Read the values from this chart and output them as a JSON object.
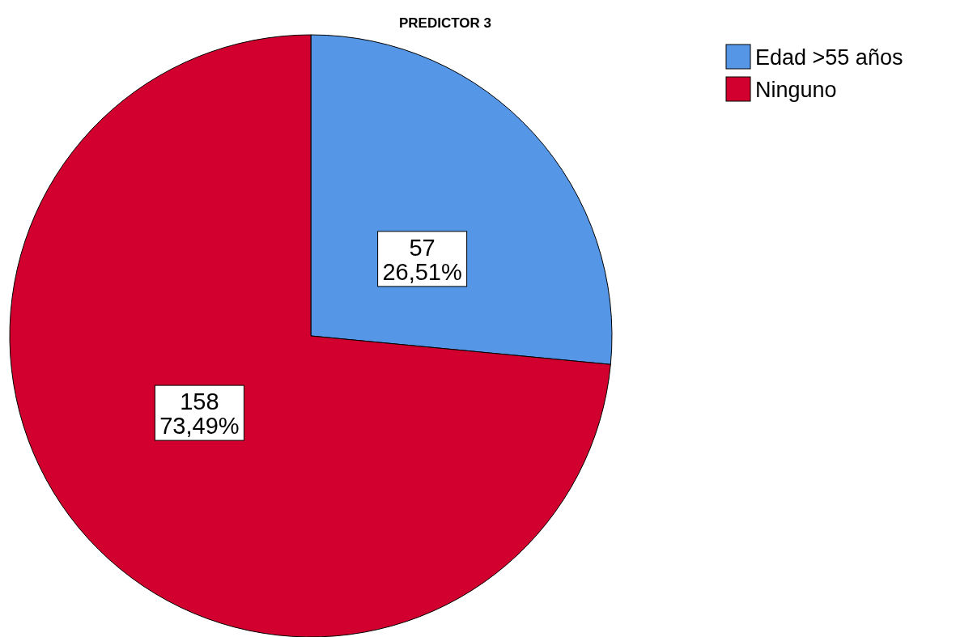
{
  "chart_data": {
    "type": "pie",
    "title": "PREDICTOR 3",
    "categories": [
      "Edad >55 años",
      "Ninguno"
    ],
    "values": [
      57,
      158
    ],
    "colors": [
      "#5596e6",
      "#d2002e"
    ],
    "value_labels": [
      "57\n26,51%",
      "158\n73,49%"
    ],
    "legend": "top right"
  }
}
